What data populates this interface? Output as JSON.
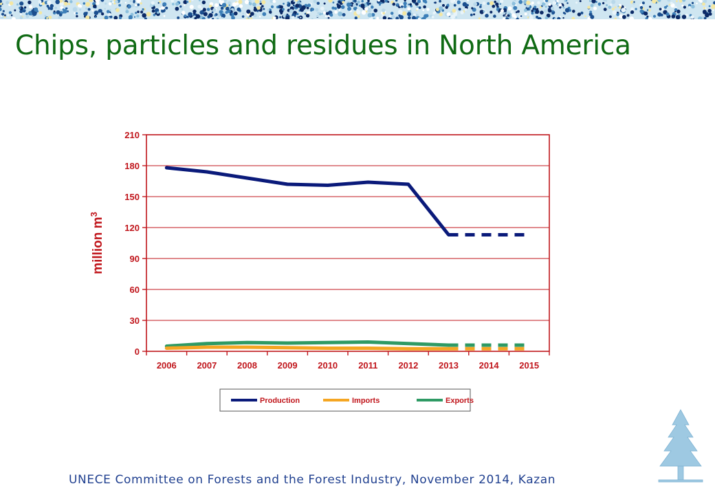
{
  "slide": {
    "title": "Chips, particles and residues in North America",
    "footer": "UNECE Committee on Forests and the Forest Industry, November 2014, Kazan"
  },
  "colors": {
    "title": "#0f6a13",
    "axis": "#c0151b",
    "production": "#0a1a7a",
    "imports": "#f5a623",
    "exports": "#2e9a64",
    "footer": "#1f3f8f"
  },
  "icons": [
    "tree-logo-icon",
    "mosaic-banner"
  ],
  "chart_data": {
    "type": "line",
    "title": "",
    "xlabel": "",
    "ylabel": "million m",
    "ylabel_superscript": "3",
    "categories": [
      "2006",
      "2007",
      "2008",
      "2009",
      "2010",
      "2011",
      "2012",
      "2013",
      "2014",
      "2015"
    ],
    "ylim": [
      0,
      210
    ],
    "yticks": [
      0,
      30,
      60,
      90,
      120,
      150,
      180,
      210
    ],
    "grid": true,
    "legend_placement": "bottom",
    "forecast_from": "2013",
    "series": [
      {
        "name": "Production",
        "color": "#0a1a7a",
        "values": [
          178,
          174,
          168,
          162,
          161,
          164,
          162,
          113,
          113,
          113
        ]
      },
      {
        "name": "Imports",
        "color": "#f5a623",
        "values": [
          3,
          4,
          4,
          3.5,
          3,
          3,
          2.5,
          2.5,
          2.5,
          2.5
        ]
      },
      {
        "name": "Exports",
        "color": "#2e9a64",
        "values": [
          5,
          7.5,
          8.5,
          8,
          8.5,
          9,
          7.5,
          6,
          6,
          6
        ]
      }
    ]
  }
}
